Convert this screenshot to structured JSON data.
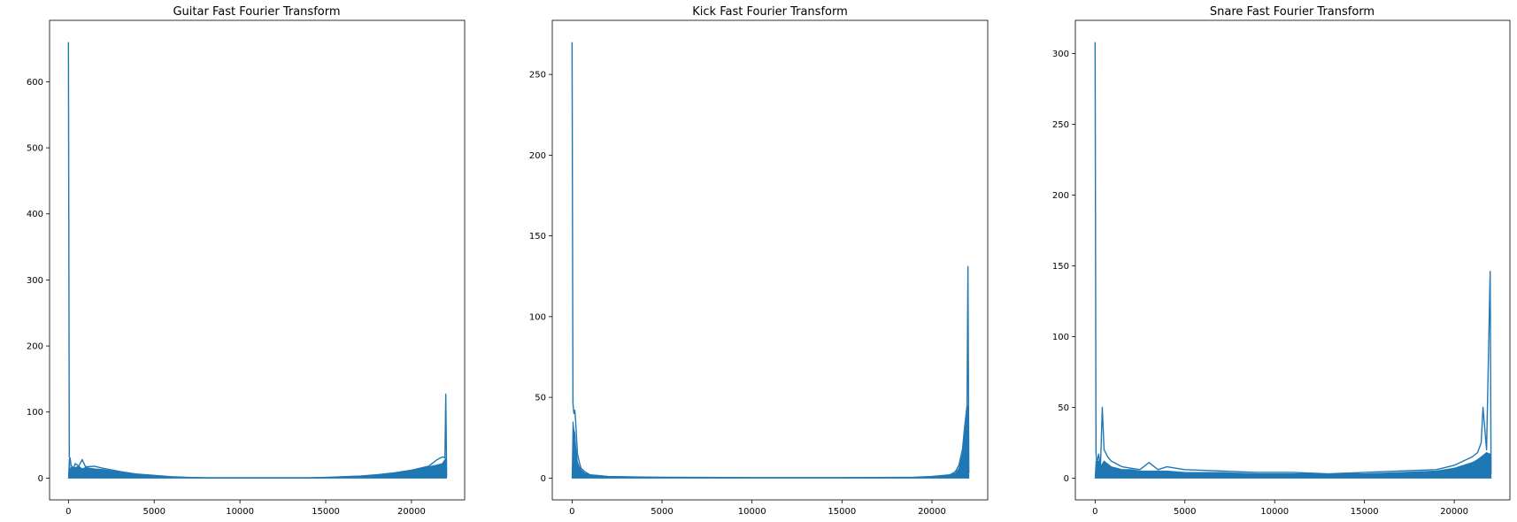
{
  "chart_data": [
    {
      "type": "line",
      "title": "Guitar Fast Fourier Transform",
      "xlabel": "",
      "ylabel": "",
      "xlim": [
        -1100,
        23100
      ],
      "ylim": [
        -33,
        693
      ],
      "xticks": [
        0,
        5000,
        10000,
        15000,
        20000
      ],
      "yticks": [
        0,
        100,
        200,
        300,
        400,
        500,
        600
      ],
      "grid": false,
      "legend": "none",
      "color": "#1f77b4",
      "series": [
        {
          "x": [
            0,
            50,
            100,
            150,
            200,
            300,
            400,
            600,
            800,
            1000,
            1500,
            2000,
            3000,
            4000,
            5000,
            6000,
            7000,
            8000,
            10000,
            12000,
            14000,
            15000,
            16000,
            17000,
            18000,
            19000,
            20000,
            20500,
            21000,
            21500,
            21800,
            21950,
            22000,
            22050
          ],
          "y": [
            660,
            32,
            30,
            20,
            18,
            15,
            22,
            18,
            28,
            17,
            18,
            15,
            10,
            6,
            4,
            2,
            1,
            0.5,
            0.5,
            0.5,
            0.5,
            1,
            2,
            3,
            5,
            8,
            12,
            15,
            18,
            28,
            32,
            31,
            127,
            3
          ],
          "envelope": [
            0,
            30,
            12,
            15,
            18,
            15,
            16,
            18,
            14,
            16,
            14,
            13,
            9,
            6,
            4,
            2,
            1,
            0.5,
            0.5,
            0.5,
            0.5,
            1,
            2,
            3,
            5,
            8,
            11,
            14,
            17,
            20,
            22,
            28,
            30,
            0
          ]
        }
      ]
    },
    {
      "type": "line",
      "title": "Kick Fast Fourier Transform",
      "xlabel": "",
      "ylabel": "",
      "xlim": [
        -1100,
        23100
      ],
      "ylim": [
        -13.5,
        283.5
      ],
      "xticks": [
        0,
        5000,
        10000,
        15000,
        20000
      ],
      "yticks": [
        0,
        50,
        100,
        150,
        200,
        250
      ],
      "grid": false,
      "legend": "none",
      "color": "#1f77b4",
      "series": [
        {
          "x": [
            0,
            50,
            100,
            150,
            200,
            250,
            300,
            400,
            500,
            700,
            1000,
            1500,
            2000,
            3000,
            5000,
            10000,
            15000,
            19000,
            20000,
            21000,
            21300,
            21500,
            21700,
            21800,
            21900,
            21950,
            22000,
            22050
          ],
          "y": [
            270,
            46,
            40,
            42,
            35,
            25,
            15,
            10,
            6,
            4,
            2,
            1.5,
            1,
            0.8,
            0.5,
            0.3,
            0.3,
            0.5,
            1,
            2,
            4,
            8,
            18,
            30,
            40,
            45,
            131,
            3
          ],
          "envelope": [
            0,
            35,
            30,
            28,
            20,
            15,
            10,
            7,
            5,
            3,
            2,
            1.5,
            1,
            0.8,
            0.5,
            0.3,
            0.3,
            0.5,
            1,
            2,
            3,
            6,
            15,
            25,
            35,
            40,
            45,
            0
          ]
        }
      ]
    },
    {
      "type": "line",
      "title": "Snare Fast Fourier Transform",
      "xlabel": "",
      "ylabel": "",
      "xlim": [
        -1100,
        23100
      ],
      "ylim": [
        -15.4,
        323.4
      ],
      "xticks": [
        0,
        5000,
        10000,
        15000,
        20000
      ],
      "yticks": [
        0,
        50,
        100,
        150,
        200,
        250,
        300
      ],
      "grid": false,
      "legend": "none",
      "color": "#1f77b4",
      "series": [
        {
          "x": [
            0,
            50,
            100,
            200,
            300,
            400,
            500,
            700,
            900,
            1200,
            1500,
            2000,
            2500,
            3000,
            3500,
            4000,
            5000,
            7000,
            9000,
            11000,
            13000,
            15000,
            17000,
            19000,
            20000,
            20500,
            21000,
            21300,
            21500,
            21600,
            21800,
            22000,
            22050
          ],
          "y": [
            308,
            18,
            10,
            17,
            8,
            50,
            20,
            15,
            12,
            10,
            8,
            7,
            6,
            11,
            6,
            8,
            6,
            5,
            4,
            4,
            3,
            4,
            5,
            6,
            9,
            12,
            15,
            18,
            25,
            50,
            20,
            146,
            3
          ],
          "envelope": [
            0,
            12,
            10,
            12,
            8,
            10,
            12,
            10,
            8,
            7,
            6,
            6,
            5,
            5,
            5,
            5,
            4,
            4,
            3,
            3,
            3,
            3,
            4,
            5,
            7,
            9,
            11,
            13,
            15,
            16,
            18,
            17,
            0
          ]
        }
      ]
    }
  ]
}
